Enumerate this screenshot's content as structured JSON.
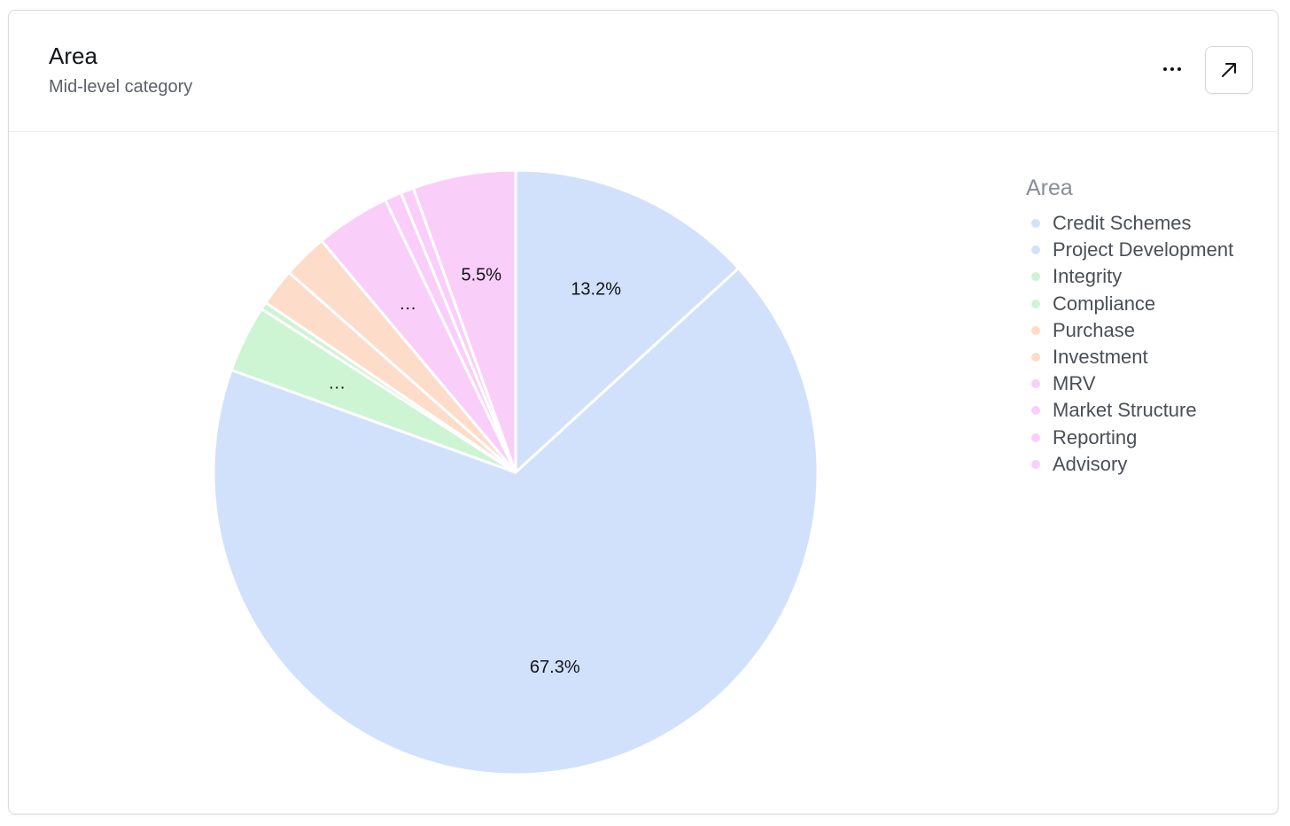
{
  "header": {
    "title": "Area",
    "subtitle": "Mid-level category",
    "more_icon": "more-horizontal-icon",
    "expand_icon": "arrow-up-right-icon"
  },
  "legend": {
    "title": "Area"
  },
  "chart_data": {
    "type": "pie",
    "title": "Area",
    "subtitle": "Mid-level category",
    "legend_placement": "right",
    "start": "top, clockwise",
    "categories": [
      "Credit Schemes",
      "Project Development",
      "Integrity",
      "Compliance",
      "Purchase",
      "Investment",
      "MRV",
      "Market Structure",
      "Reporting",
      "Advisory"
    ],
    "values": [
      13.2,
      67.3,
      3.6,
      0.4,
      2.0,
      2.4,
      4.0,
      0.9,
      0.7,
      5.5
    ],
    "labels": [
      "13.2%",
      "67.3%",
      "…",
      "",
      "",
      "",
      "…",
      "",
      "",
      "5.5%"
    ],
    "colors": [
      "#d1e1fc",
      "#d1e1fc",
      "#cdf4d3",
      "#cdf4d3",
      "#fddcca",
      "#fddcca",
      "#f9cff9",
      "#f9cff9",
      "#f9cff9",
      "#f9cff9"
    ]
  }
}
